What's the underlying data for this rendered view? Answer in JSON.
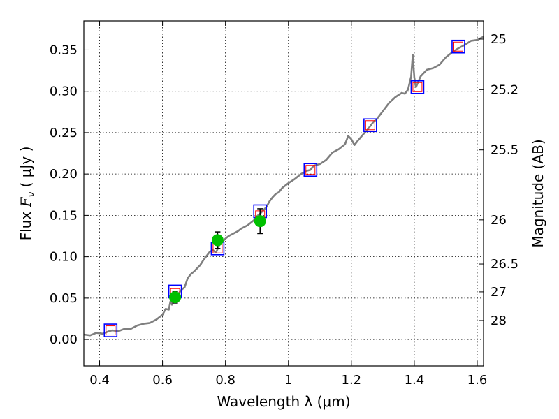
{
  "chart_data": {
    "type": "scatter",
    "xlabel": "Wavelength  λ (μm)",
    "ylabel": "Flux  F_ν  ( μJy )",
    "ylabel_parts": {
      "prefix": "Flux  ",
      "symbol": "F",
      "subscript": "ν",
      "suffix": "  ( μJy )"
    },
    "y2label": "Magnitude (AB)",
    "xlim": [
      0.35,
      1.62
    ],
    "ylim": [
      -0.032,
      0.385
    ],
    "grid": true,
    "x_ticks": [
      {
        "value": 0.4,
        "label": "0.4"
      },
      {
        "value": 0.6,
        "label": "0.6"
      },
      {
        "value": 0.8,
        "label": "0.8"
      },
      {
        "value": 1.0,
        "label": "1"
      },
      {
        "value": 1.2,
        "label": "1.2"
      },
      {
        "value": 1.4,
        "label": "1.4"
      },
      {
        "value": 1.6,
        "label": "1.6"
      }
    ],
    "y_ticks": [
      {
        "value": 0.0,
        "label": "0.00"
      },
      {
        "value": 0.05,
        "label": "0.05"
      },
      {
        "value": 0.1,
        "label": "0.10"
      },
      {
        "value": 0.15,
        "label": "0.15"
      },
      {
        "value": 0.2,
        "label": "0.20"
      },
      {
        "value": 0.25,
        "label": "0.25"
      },
      {
        "value": 0.3,
        "label": "0.30"
      },
      {
        "value": 0.35,
        "label": "0.35"
      }
    ],
    "y2_ticks": [
      {
        "value": 25,
        "label": "25"
      },
      {
        "value": 25.2,
        "label": "25.2"
      },
      {
        "value": 25.5,
        "label": "25.5"
      },
      {
        "value": 26,
        "label": "26"
      },
      {
        "value": 26.5,
        "label": "26.5"
      },
      {
        "value": 27,
        "label": "27"
      },
      {
        "value": 28,
        "label": "28"
      }
    ],
    "series": [
      {
        "kind": "line",
        "color": "#7f7f7f",
        "x": [
          0.35,
          0.37,
          0.39,
          0.41,
          0.43,
          0.44,
          0.46,
          0.48,
          0.5,
          0.52,
          0.54,
          0.56,
          0.58,
          0.6,
          0.61,
          0.62,
          0.625,
          0.63,
          0.64,
          0.65,
          0.66,
          0.67,
          0.68,
          0.69,
          0.7,
          0.71,
          0.72,
          0.73,
          0.74,
          0.75,
          0.76,
          0.77,
          0.78,
          0.79,
          0.8,
          0.81,
          0.82,
          0.83,
          0.84,
          0.85,
          0.86,
          0.87,
          0.88,
          0.89,
          0.9,
          0.91,
          0.92,
          0.93,
          0.94,
          0.95,
          0.96,
          0.97,
          0.98,
          0.99,
          1.0,
          1.02,
          1.04,
          1.06,
          1.07,
          1.08,
          1.1,
          1.12,
          1.14,
          1.16,
          1.18,
          1.19,
          1.2,
          1.21,
          1.22,
          1.24,
          1.25,
          1.26,
          1.27,
          1.28,
          1.3,
          1.32,
          1.34,
          1.36,
          1.37,
          1.38,
          1.39,
          1.395,
          1.4,
          1.405,
          1.41,
          1.42,
          1.44,
          1.46,
          1.48,
          1.5,
          1.52,
          1.54,
          1.56,
          1.58,
          1.6,
          1.62
        ],
        "values": [
          0.006,
          0.005,
          0.008,
          0.007,
          0.01,
          0.011,
          0.01,
          0.013,
          0.013,
          0.017,
          0.019,
          0.02,
          0.024,
          0.03,
          0.037,
          0.036,
          0.046,
          0.042,
          0.05,
          0.055,
          0.06,
          0.063,
          0.074,
          0.079,
          0.082,
          0.086,
          0.09,
          0.096,
          0.101,
          0.106,
          0.108,
          0.105,
          0.114,
          0.118,
          0.122,
          0.125,
          0.127,
          0.129,
          0.131,
          0.134,
          0.136,
          0.138,
          0.141,
          0.144,
          0.149,
          0.152,
          0.156,
          0.16,
          0.167,
          0.172,
          0.176,
          0.178,
          0.183,
          0.186,
          0.189,
          0.194,
          0.2,
          0.204,
          0.205,
          0.21,
          0.212,
          0.217,
          0.226,
          0.23,
          0.236,
          0.246,
          0.242,
          0.235,
          0.24,
          0.249,
          0.253,
          0.258,
          0.263,
          0.266,
          0.276,
          0.286,
          0.293,
          0.298,
          0.297,
          0.302,
          0.318,
          0.344,
          0.317,
          0.305,
          0.309,
          0.318,
          0.326,
          0.328,
          0.332,
          0.341,
          0.347,
          0.352,
          0.356,
          0.361,
          0.362,
          0.366
        ]
      },
      {
        "kind": "open-square",
        "color": "#0000ff",
        "x": [
          0.435,
          0.64,
          0.775,
          0.91,
          1.07,
          1.26,
          1.41,
          1.54
        ],
        "values": [
          0.011,
          0.058,
          0.11,
          0.155,
          0.205,
          0.259,
          0.305,
          0.354
        ]
      },
      {
        "kind": "open-square",
        "color": "#ff0000",
        "x": [
          0.435,
          0.64,
          0.775,
          0.91,
          1.07,
          1.26,
          1.41,
          1.54
        ],
        "values": [
          0.011,
          0.056,
          0.11,
          0.15,
          0.205,
          0.259,
          0.305,
          0.354
        ]
      },
      {
        "kind": "filled-circle-errorbar",
        "color": "#00c000",
        "x": [
          0.64,
          0.775,
          0.91
        ],
        "values": [
          0.051,
          0.12,
          0.143
        ],
        "errors": [
          0.007,
          0.01,
          0.015
        ]
      }
    ]
  }
}
